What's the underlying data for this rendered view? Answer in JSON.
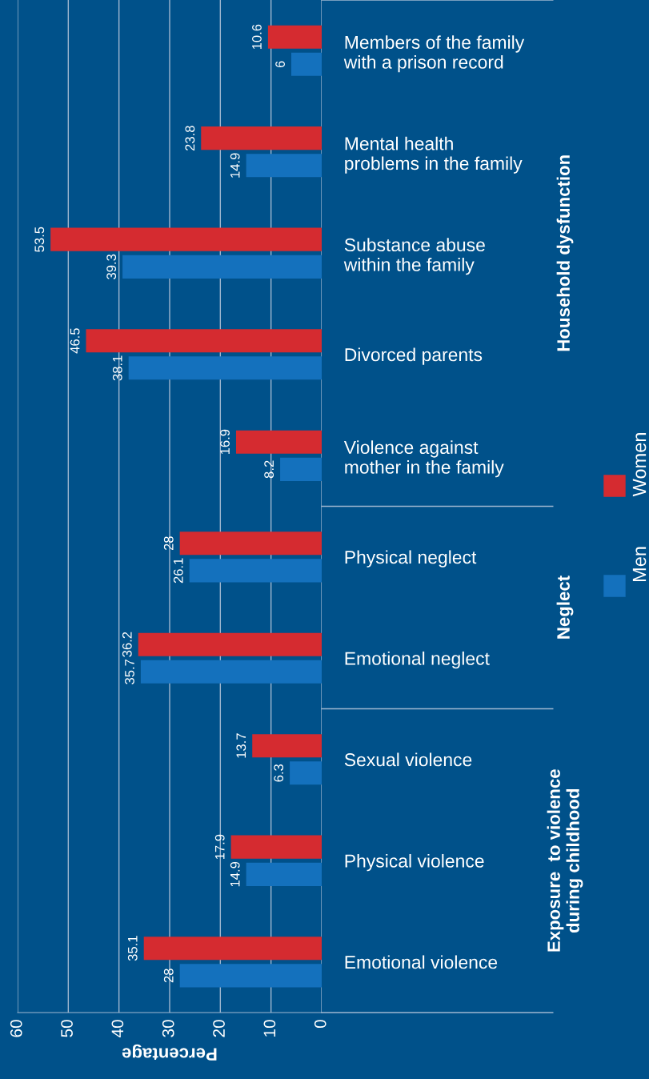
{
  "chart_data": {
    "type": "bar",
    "orientation": "horizontal",
    "xlabel": "Percentage",
    "categories": [
      "Members of the family\nwith a prison record",
      "Mental health\nproblems in the family",
      "Substance abuse\nwithin the family",
      "Divorced parents",
      "Violence against\nmother in the family",
      "Physical neglect",
      "Emotional neglect",
      "Sexual violence",
      "Physical violence",
      "Emotional violence"
    ],
    "series": [
      {
        "name": "Women",
        "color": "#d52b30",
        "values": [
          10.6,
          23.8,
          53.5,
          46.5,
          16.9,
          28,
          36.2,
          13.7,
          17.9,
          35.1
        ]
      },
      {
        "name": "Men",
        "color": "#1471bd",
        "values": [
          6,
          14.9,
          39.3,
          38.1,
          8.2,
          26.1,
          35.7,
          6.3,
          14.9,
          28
        ]
      }
    ],
    "xlim": [
      60,
      0
    ],
    "xticks": [
      0,
      10,
      20,
      30,
      40,
      50,
      60
    ],
    "grid": "x",
    "legend": "bottom",
    "data_labels": true,
    "annotations": [
      "Household dysfunction",
      "Neglect",
      "Exposure  to violence\nduring childhood"
    ]
  }
}
